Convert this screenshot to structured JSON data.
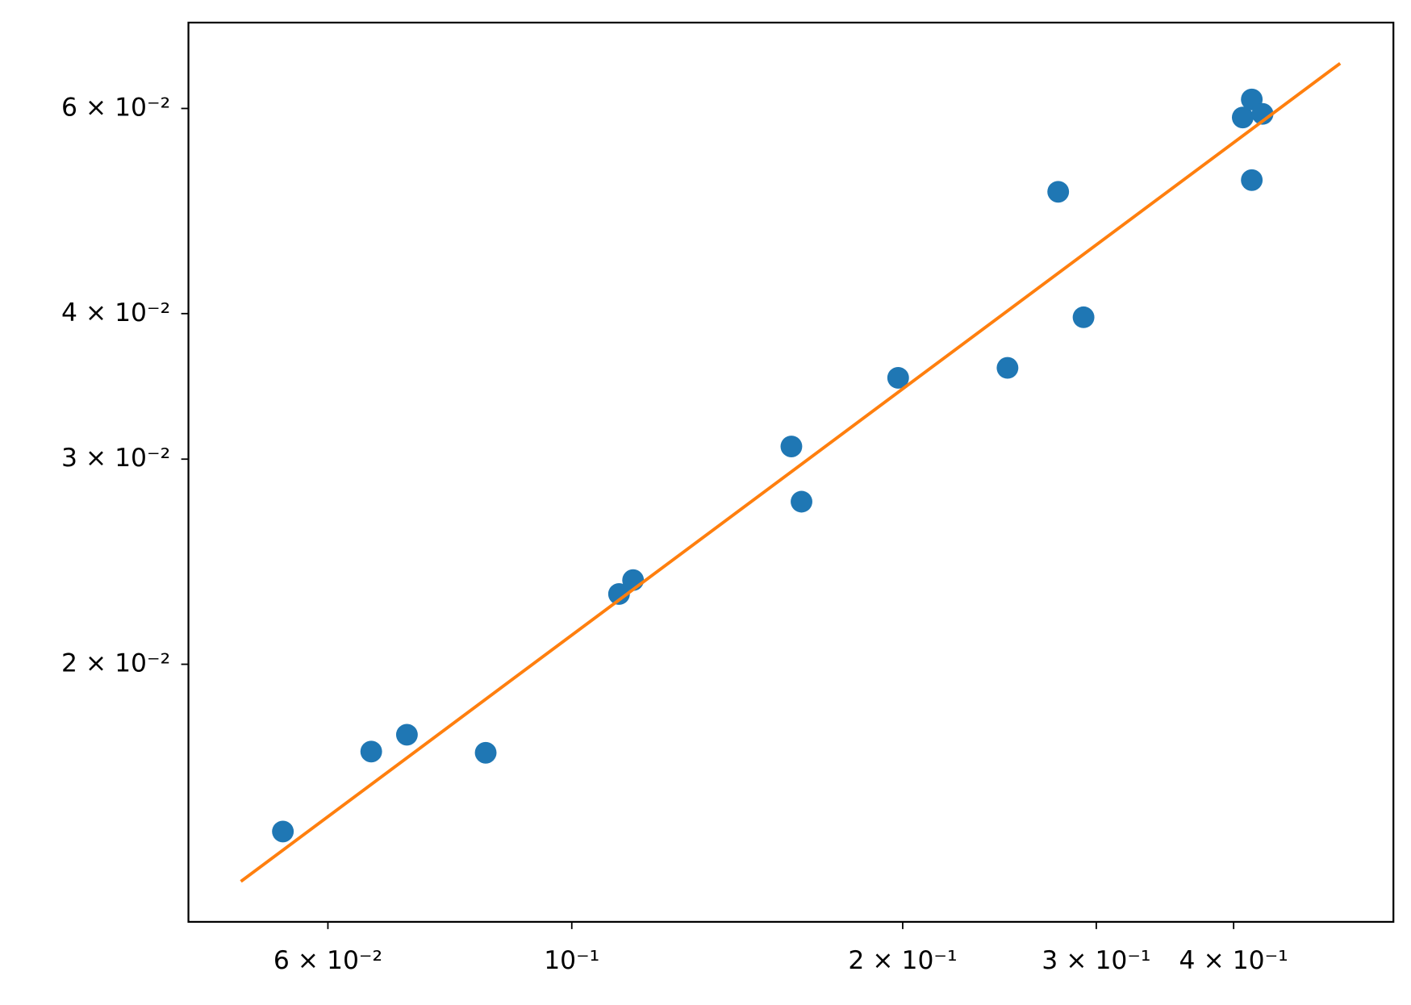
{
  "chart_data": {
    "type": "scatter",
    "xscale": "log",
    "yscale": "log",
    "xlim": [
      0.0448,
      0.559
    ],
    "ylim": [
      0.01202,
      0.0711
    ],
    "xticks": [
      {
        "value": 0.06,
        "label": "6 × 10⁻²"
      },
      {
        "value": 0.1,
        "label": "10⁻¹"
      },
      {
        "value": 0.2,
        "label": "2 × 10⁻¹"
      },
      {
        "value": 0.3,
        "label": "3 × 10⁻¹"
      },
      {
        "value": 0.4,
        "label": "4 × 10⁻¹"
      }
    ],
    "yticks": [
      {
        "value": 0.02,
        "label": "2 × 10⁻²"
      },
      {
        "value": 0.03,
        "label": "3 × 10⁻²"
      },
      {
        "value": 0.04,
        "label": "4 × 10⁻²"
      },
      {
        "value": 0.06,
        "label": "6 × 10⁻²"
      }
    ],
    "series": [
      {
        "type": "scatter",
        "color": "#1f77b4",
        "x": [
          0.0546,
          0.0657,
          0.0708,
          0.0835,
          0.1104,
          0.1137,
          0.1584,
          0.1618,
          0.1981,
          0.2491,
          0.277,
          0.2921,
          0.4077,
          0.4155,
          0.425,
          0.4155
        ],
        "values": [
          0.01437,
          0.01683,
          0.0174,
          0.01679,
          0.02298,
          0.02362,
          0.03076,
          0.02758,
          0.03523,
          0.03593,
          0.05089,
          0.03971,
          0.05894,
          0.06108,
          0.05936,
          0.05208
        ]
      },
      {
        "type": "line",
        "color": "#ff7f0e",
        "x": [
          0.05,
          0.5
        ],
        "values": [
          0.01302,
          0.0656
        ]
      }
    ]
  }
}
